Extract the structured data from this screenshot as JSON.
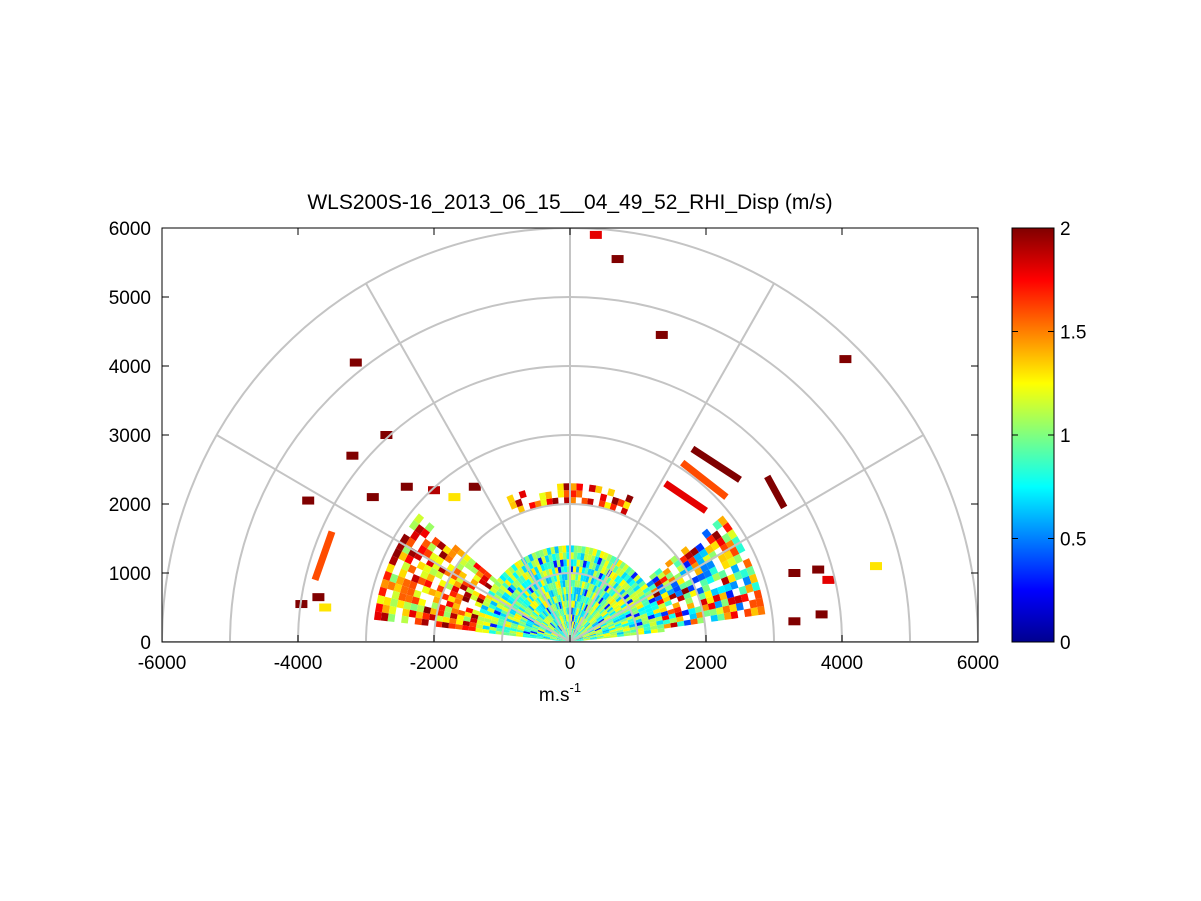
{
  "chart_data": {
    "type": "heatmap",
    "subtype": "polar-rhi-scan",
    "title": "WLS200S-16_2013_06_15__04_49_52_RHI_Disp (m/s)",
    "xlabel": "m.s",
    "xlabel_superscript": "-1",
    "ylabel": "",
    "xlim": [
      -6000,
      6000
    ],
    "ylim": [
      0,
      6000
    ],
    "x_ticks": [
      -6000,
      -4000,
      -2000,
      0,
      2000,
      4000,
      6000
    ],
    "x_tick_labels": [
      "-6000",
      "-4000",
      "-2000",
      "0",
      "2000",
      "4000",
      "6000"
    ],
    "y_ticks": [
      0,
      1000,
      2000,
      3000,
      4000,
      5000,
      6000
    ],
    "y_tick_labels": [
      "0",
      "1000",
      "2000",
      "3000",
      "4000",
      "5000",
      "6000"
    ],
    "polar_grid": {
      "ring_ranges_m": [
        1000,
        2000,
        3000,
        4000,
        5000,
        6000
      ],
      "spoke_angles_deg": [
        0,
        30,
        60,
        90,
        120,
        150,
        180
      ]
    },
    "colorbar": {
      "colormap": "jet",
      "range": [
        0,
        2
      ],
      "ticks": [
        0,
        0.5,
        1,
        1.5,
        2
      ],
      "tick_labels": [
        "0",
        "0.5",
        "1",
        "1.5",
        "2"
      ]
    },
    "dense_regions": [
      {
        "name": "central-core",
        "theta_deg": [
          6,
          174
        ],
        "range_m": [
          0,
          1400
        ],
        "value_range": [
          0.6,
          1.3
        ]
      },
      {
        "name": "left-shell",
        "theta_deg": [
          140,
          172
        ],
        "range_m": [
          1400,
          2900
        ],
        "value_range": [
          1.0,
          2.0
        ]
      },
      {
        "name": "right-shell",
        "theta_deg": [
          8,
          38
        ],
        "range_m": [
          1400,
          2900
        ],
        "value_range": [
          0.3,
          2.0
        ]
      },
      {
        "name": "upper-arc-band",
        "theta_deg": [
          66,
          114
        ],
        "range_m": [
          2000,
          2300
        ],
        "value_range": [
          1.2,
          2.0
        ]
      }
    ],
    "scattered_points": [
      {
        "x": -3150,
        "y": 4050,
        "v": 2.0
      },
      {
        "x": -3200,
        "y": 2700,
        "v": 2.0
      },
      {
        "x": -2700,
        "y": 3000,
        "v": 2.0
      },
      {
        "x": -3850,
        "y": 2050,
        "v": 2.0
      },
      {
        "x": -2900,
        "y": 2100,
        "v": 2.0
      },
      {
        "x": -2400,
        "y": 2250,
        "v": 2.0
      },
      {
        "x": -2000,
        "y": 2200,
        "v": 1.9
      },
      {
        "x": -1700,
        "y": 2100,
        "v": 1.3
      },
      {
        "x": -1400,
        "y": 2250,
        "v": 2.0
      },
      {
        "x": -3700,
        "y": 650,
        "v": 2.0
      },
      {
        "x": -3950,
        "y": 550,
        "v": 2.0
      },
      {
        "x": -3600,
        "y": 500,
        "v": 1.3
      },
      {
        "x": 4050,
        "y": 4100,
        "v": 2.0
      },
      {
        "x": 4500,
        "y": 1100,
        "v": 1.3
      },
      {
        "x": 3300,
        "y": 1000,
        "v": 2.0
      },
      {
        "x": 3650,
        "y": 1050,
        "v": 2.0
      },
      {
        "x": 3800,
        "y": 900,
        "v": 1.8
      },
      {
        "x": 3700,
        "y": 400,
        "v": 2.0
      },
      {
        "x": 3300,
        "y": 300,
        "v": 2.0
      },
      {
        "x": 380,
        "y": 5900,
        "v": 1.8
      },
      {
        "x": 700,
        "y": 5550,
        "v": 2.0
      },
      {
        "x": 1350,
        "y": 4450,
        "v": 2.0
      }
    ],
    "streaks": [
      {
        "from": [
          1800,
          2800
        ],
        "to": [
          2500,
          2350
        ],
        "v": 2.0
      },
      {
        "from": [
          1650,
          2600
        ],
        "to": [
          2300,
          2100
        ],
        "v": 1.6
      },
      {
        "from": [
          2900,
          2400
        ],
        "to": [
          3150,
          1950
        ],
        "v": 2.0
      },
      {
        "from": [
          1400,
          2300
        ],
        "to": [
          2000,
          1900
        ],
        "v": 1.8
      },
      {
        "from": [
          -3500,
          1600
        ],
        "to": [
          -3750,
          900
        ],
        "v": 1.6
      }
    ]
  }
}
